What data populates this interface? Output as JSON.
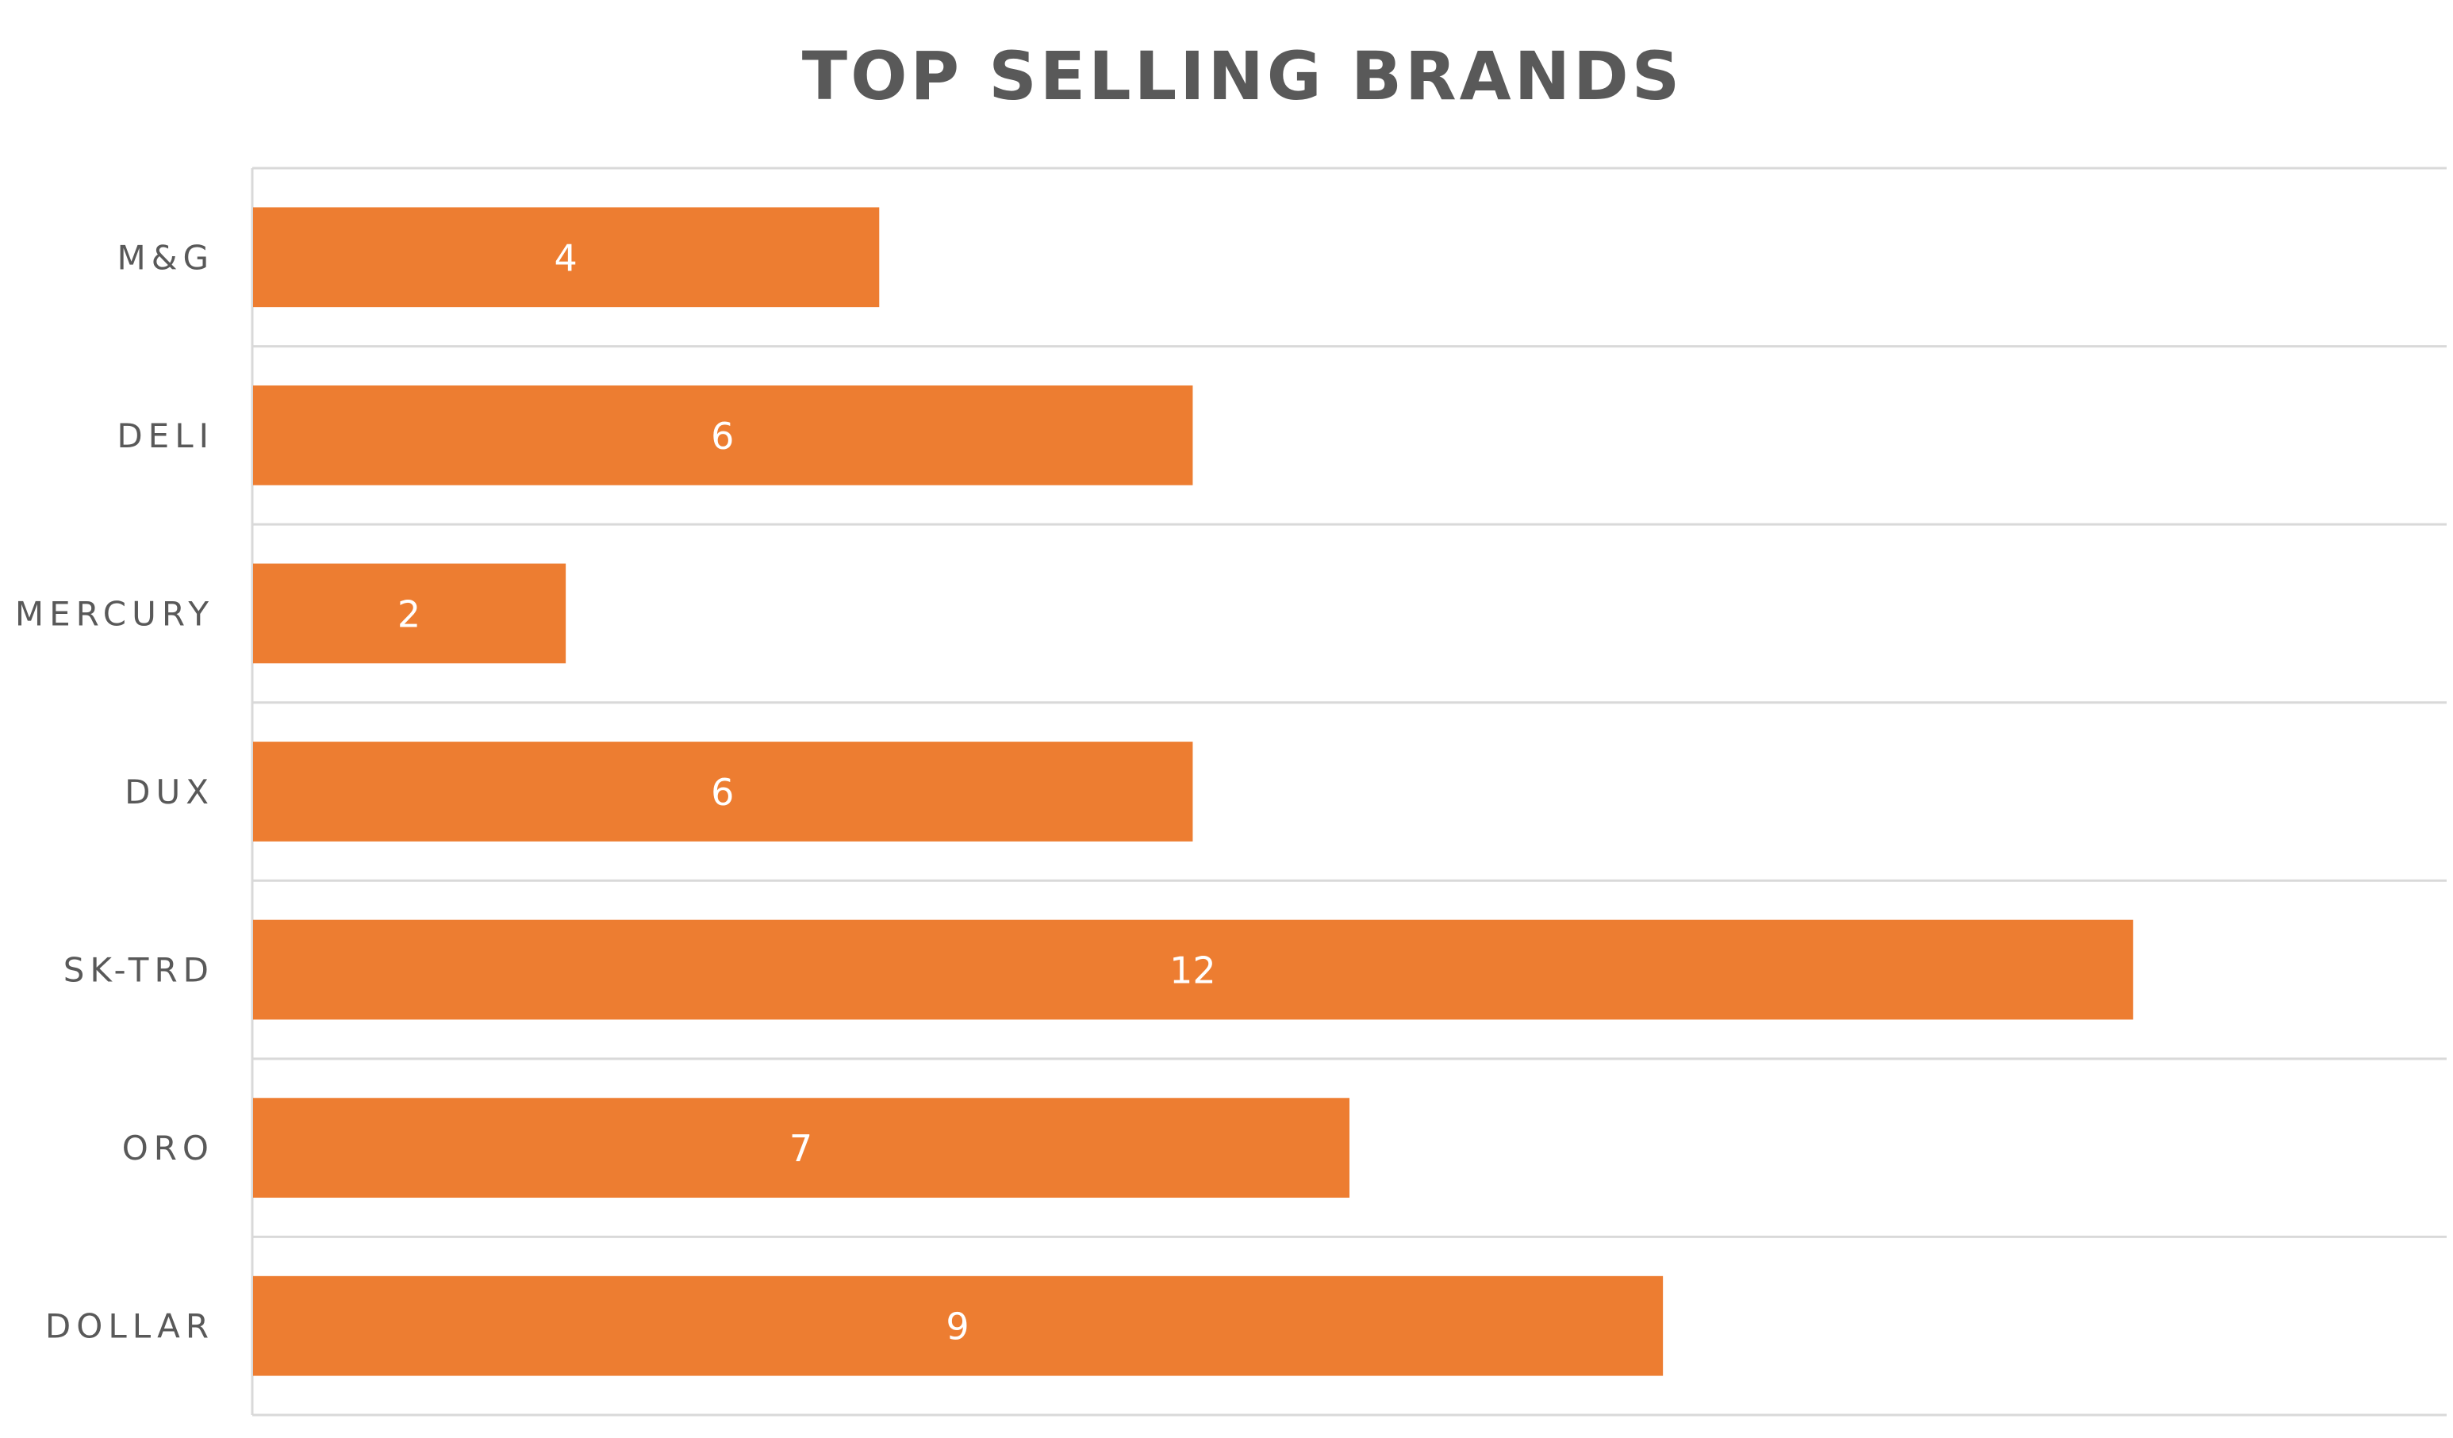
{
  "chart_data": {
    "type": "bar",
    "orientation": "horizontal",
    "title": "TOP SELLING BRANDS",
    "xlabel": "",
    "ylabel": "",
    "categories": [
      "M&G",
      "DELI",
      "MERCURY",
      "DUX",
      "SK-TRD",
      "ORO",
      "DOLLAR"
    ],
    "values": [
      4,
      6,
      2,
      6,
      12,
      7,
      9
    ],
    "xlim": [
      0,
      14
    ],
    "data_labels": true,
    "grid": true,
    "legend": "none",
    "colors": {
      "bar": "#ED7D31",
      "title": "#595959",
      "labels": "#595959",
      "gridline": "#D9D9D9"
    }
  }
}
